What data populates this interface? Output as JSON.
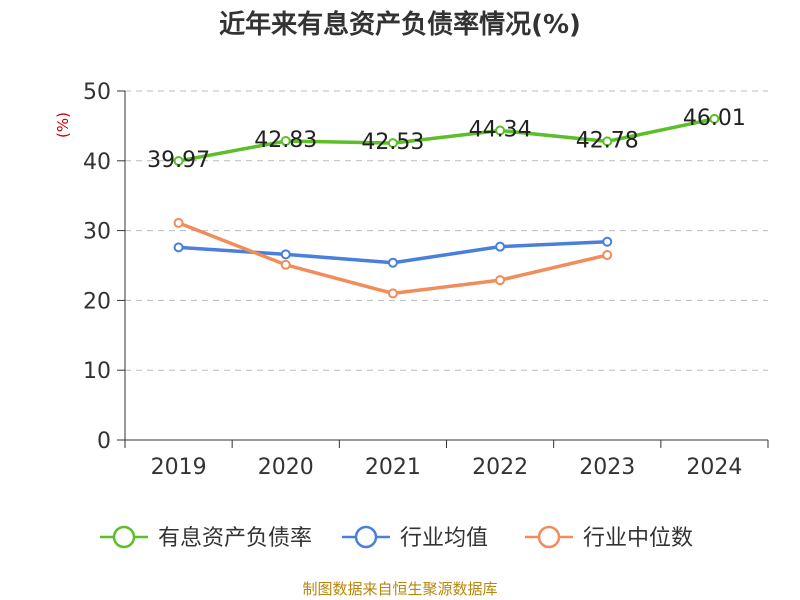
{
  "chart_data": {
    "type": "line",
    "title": "近年来有息资产负债率情况(%)",
    "ylabel": "(%)",
    "xlabel": "",
    "categories": [
      "2019",
      "2020",
      "2021",
      "2022",
      "2023",
      "2024"
    ],
    "ylim": [
      0,
      50
    ],
    "yticks": [
      0,
      10,
      20,
      30,
      40,
      50
    ],
    "grid": "horizontal-dashed",
    "legend_position": "bottom",
    "series": [
      {
        "name": "有息资产负债率",
        "color": "#5cbf2a",
        "show_labels": true,
        "values": [
          39.97,
          42.83,
          42.53,
          44.34,
          42.78,
          46.01
        ],
        "labels": [
          "39.97",
          "42.83",
          "42.53",
          "44.34",
          "42.78",
          "46.01"
        ]
      },
      {
        "name": "行业均值",
        "color": "#4a7fdb",
        "show_labels": false,
        "values": [
          27.6,
          26.6,
          25.4,
          27.7,
          28.4,
          null
        ]
      },
      {
        "name": "行业中位数",
        "color": "#f28c5a",
        "show_labels": false,
        "values": [
          31.1,
          25.1,
          21.0,
          22.9,
          26.5,
          null
        ]
      }
    ]
  },
  "source": "制图数据来自恒生聚源数据库"
}
